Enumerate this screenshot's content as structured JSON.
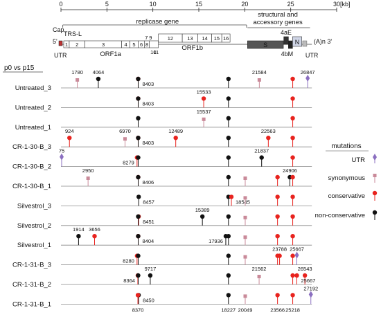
{
  "colors": {
    "UTR": "#8b6fc0",
    "synonymous": "#c98a99",
    "conservative": "#e8231e",
    "non-conservative": "#111111",
    "gene_box": "#ffffff",
    "S_box": "#555555",
    "line": "#888888"
  },
  "scale": {
    "ticks": [
      "0",
      "5",
      "10",
      "15",
      "20",
      "25",
      "30"
    ],
    "unit": "[kb]",
    "max_kb": 30
  },
  "genome": {
    "replicase_label": "replicase gene",
    "structural_label_1": "structural and",
    "structural_label_2": "accessory genes",
    "cap": "Cap",
    "trs": "TRS-L",
    "five_prime": "5'",
    "utr_left": "UTR",
    "utr_right": "UTR",
    "polyA": "(A)n 3'",
    "orf1a": "ORF1a",
    "orf1b": "ORF1b",
    "S": "S",
    "N": "N",
    "label_4aE": "4aE",
    "label_4bM": "4bM",
    "nsp_1a": [
      {
        "label": "1",
        "start": 0.3,
        "end": 0.9
      },
      {
        "label": "2",
        "start": 0.9,
        "end": 2.6
      },
      {
        "label": "3",
        "start": 2.6,
        "end": 6.6
      },
      {
        "label": "4",
        "start": 6.6,
        "end": 7.5
      },
      {
        "label": "5",
        "start": 7.5,
        "end": 8.4
      },
      {
        "label": "6",
        "start": 8.4,
        "end": 9.1
      },
      {
        "label": "8",
        "start": 9.1,
        "end": 9.6
      }
    ],
    "nsp_top": [
      {
        "label": "7",
        "kb": 9.3
      },
      {
        "label": "9",
        "kb": 9.75
      }
    ],
    "nsp_1b": [
      {
        "label": "12",
        "start": 10.6,
        "end": 13.2
      },
      {
        "label": "13",
        "start": 13.2,
        "end": 14.9
      },
      {
        "label": "14",
        "start": 14.9,
        "end": 16.4
      },
      {
        "label": "15",
        "start": 16.4,
        "end": 17.5
      },
      {
        "label": "16",
        "start": 17.5,
        "end": 18.4
      }
    ],
    "nsp_bottom": [
      {
        "label": "10",
        "kb": 10.05
      },
      {
        "label": "11",
        "kb": 10.35
      }
    ]
  },
  "comparison_label": "p0 vs p15",
  "legend": {
    "title": "mutations",
    "items": [
      "UTR",
      "synonymous",
      "conservative",
      "non-conservative"
    ]
  },
  "samples": [
    {
      "name": "Untreated_3",
      "mutations": [
        {
          "pos": 1780,
          "type": "synonymous",
          "label": "1780",
          "lp": "above"
        },
        {
          "pos": 4064,
          "type": "non-conservative",
          "label": "4064",
          "lp": "above"
        },
        {
          "pos": 8403,
          "type": "conservative",
          "label": "8403",
          "lp": "right"
        },
        {
          "pos": 8403,
          "type": "non-conservative",
          "label": ""
        },
        {
          "pos": 18227,
          "type": "non-conservative",
          "label": ""
        },
        {
          "pos": 21584,
          "type": "synonymous",
          "label": "21584",
          "lp": "above"
        },
        {
          "pos": 25218,
          "type": "conservative",
          "label": ""
        },
        {
          "pos": 26847,
          "type": "UTR",
          "label": "26847",
          "lp": "above"
        }
      ]
    },
    {
      "name": "Untreated_2",
      "mutations": [
        {
          "pos": 8403,
          "type": "conservative",
          "label": "8403",
          "lp": "right"
        },
        {
          "pos": 8403,
          "type": "non-conservative",
          "label": ""
        },
        {
          "pos": 15533,
          "type": "conservative",
          "label": "15533",
          "lp": "above"
        },
        {
          "pos": 18227,
          "type": "non-conservative",
          "label": ""
        },
        {
          "pos": 25218,
          "type": "conservative",
          "label": ""
        }
      ]
    },
    {
      "name": "Untreated_1",
      "mutations": [
        {
          "pos": 8403,
          "type": "non-conservative",
          "label": ""
        },
        {
          "pos": 15537,
          "type": "synonymous",
          "label": "15537",
          "lp": "above"
        },
        {
          "pos": 18227,
          "type": "non-conservative",
          "label": ""
        },
        {
          "pos": 25218,
          "type": "conservative",
          "label": ""
        }
      ]
    },
    {
      "name": "CR-1-30-B_3",
      "mutations": [
        {
          "pos": 924,
          "type": "conservative",
          "label": "924",
          "lp": "above"
        },
        {
          "pos": 6970,
          "type": "synonymous",
          "label": "6970",
          "lp": "above"
        },
        {
          "pos": 8403,
          "type": "conservative",
          "label": "8403",
          "lp": "right"
        },
        {
          "pos": 8403,
          "type": "non-conservative",
          "label": ""
        },
        {
          "pos": 12489,
          "type": "conservative",
          "label": "12489",
          "lp": "above"
        },
        {
          "pos": 18227,
          "type": "non-conservative",
          "label": ""
        },
        {
          "pos": 22563,
          "type": "conservative",
          "label": "22563",
          "lp": "above"
        },
        {
          "pos": 25218,
          "type": "conservative",
          "label": ""
        }
      ]
    },
    {
      "name": "CR-1-30-B_2",
      "mutations": [
        {
          "pos": 75,
          "type": "UTR",
          "label": "75",
          "lp": "above"
        },
        {
          "pos": 8279,
          "type": "conservative",
          "label": "8279",
          "lp": "left"
        },
        {
          "pos": 8403,
          "type": "non-conservative",
          "label": ""
        },
        {
          "pos": 18227,
          "type": "non-conservative",
          "label": ""
        },
        {
          "pos": 21837,
          "type": "non-conservative",
          "label": "21837",
          "lp": "above"
        },
        {
          "pos": 25218,
          "type": "conservative",
          "label": ""
        }
      ]
    },
    {
      "name": "CR-1-30-B_1",
      "mutations": [
        {
          "pos": 2950,
          "type": "synonymous",
          "label": "2950",
          "lp": "above"
        },
        {
          "pos": 8406,
          "type": "conservative",
          "label": "8406",
          "lp": "right"
        },
        {
          "pos": 8403,
          "type": "non-conservative",
          "label": ""
        },
        {
          "pos": 18227,
          "type": "non-conservative",
          "label": ""
        },
        {
          "pos": 20049,
          "type": "synonymous",
          "label": ""
        },
        {
          "pos": 23566,
          "type": "conservative",
          "label": ""
        },
        {
          "pos": 24906,
          "type": "non-conservative",
          "label": "24906",
          "lp": "above"
        },
        {
          "pos": 25218,
          "type": "conservative",
          "label": ""
        }
      ]
    },
    {
      "name": "Silvestrol_3",
      "mutations": [
        {
          "pos": 8457,
          "type": "non-conservative",
          "label": "8457",
          "lp": "right"
        },
        {
          "pos": 18227,
          "type": "non-conservative",
          "label": ""
        },
        {
          "pos": 18545,
          "type": "conservative",
          "label": "18545",
          "lp": "right"
        },
        {
          "pos": 20049,
          "type": "synonymous",
          "label": ""
        },
        {
          "pos": 23566,
          "type": "conservative",
          "label": ""
        },
        {
          "pos": 25218,
          "type": "conservative",
          "label": ""
        }
      ]
    },
    {
      "name": "Silvestrol_2",
      "mutations": [
        {
          "pos": 8451,
          "type": "conservative",
          "label": "8451",
          "lp": "right"
        },
        {
          "pos": 8403,
          "type": "non-conservative",
          "label": ""
        },
        {
          "pos": 15389,
          "type": "non-conservative",
          "label": "15389",
          "lp": "above"
        },
        {
          "pos": 18227,
          "type": "non-conservative",
          "label": ""
        },
        {
          "pos": 20049,
          "type": "synonymous",
          "label": ""
        },
        {
          "pos": 23566,
          "type": "conservative",
          "label": ""
        },
        {
          "pos": 25218,
          "type": "conservative",
          "label": ""
        }
      ]
    },
    {
      "name": "Silvestrol_1",
      "mutations": [
        {
          "pos": 1914,
          "type": "non-conservative",
          "label": "1914",
          "lp": "above"
        },
        {
          "pos": 3656,
          "type": "conservative",
          "label": "3656",
          "lp": "above"
        },
        {
          "pos": 8404,
          "type": "conservative",
          "label": "8404",
          "lp": "right"
        },
        {
          "pos": 8403,
          "type": "non-conservative",
          "label": ""
        },
        {
          "pos": 17936,
          "type": "non-conservative",
          "label": "17936",
          "lp": "left"
        },
        {
          "pos": 18227,
          "type": "non-conservative",
          "label": ""
        },
        {
          "pos": 20049,
          "type": "synonymous",
          "label": ""
        },
        {
          "pos": 23566,
          "type": "conservative",
          "label": ""
        },
        {
          "pos": 25218,
          "type": "conservative",
          "label": ""
        }
      ]
    },
    {
      "name": "CR-1-31-B_3",
      "mutations": [
        {
          "pos": 8280,
          "type": "conservative",
          "label": "8280",
          "lp": "left"
        },
        {
          "pos": 8403,
          "type": "non-conservative",
          "label": ""
        },
        {
          "pos": 18227,
          "type": "non-conservative",
          "label": ""
        },
        {
          "pos": 20049,
          "type": "synonymous",
          "label": ""
        },
        {
          "pos": 23566,
          "type": "conservative",
          "label": ""
        },
        {
          "pos": 23788,
          "type": "conservative",
          "label": "23788",
          "lp": "above"
        },
        {
          "pos": 25218,
          "type": "conservative",
          "label": ""
        },
        {
          "pos": 25667,
          "type": "UTR",
          "label": "25667",
          "lp": "above"
        }
      ]
    },
    {
      "name": "CR-1-31-B_2",
      "mutations": [
        {
          "pos": 8364,
          "type": "conservative",
          "label": "8364",
          "lp": "left"
        },
        {
          "pos": 8403,
          "type": "non-conservative",
          "label": ""
        },
        {
          "pos": 9717,
          "type": "non-conservative",
          "label": "9717",
          "lp": "above"
        },
        {
          "pos": 18227,
          "type": "non-conservative",
          "label": ""
        },
        {
          "pos": 21562,
          "type": "synonymous",
          "label": "21562",
          "lp": "above"
        },
        {
          "pos": 25218,
          "type": "conservative",
          "label": ""
        },
        {
          "pos": 26543,
          "type": "conservative",
          "label": "26543",
          "lp": "above"
        },
        {
          "pos": 25667,
          "type": "conservative",
          "label": "25667",
          "lp": "right"
        }
      ]
    },
    {
      "name": "CR-1-31-B_1",
      "mutations": [
        {
          "pos": 8450,
          "type": "non-conservative",
          "label": "8450",
          "lp": "right"
        },
        {
          "pos": 8370,
          "type": "conservative",
          "label": "8370",
          "lp": "below"
        },
        {
          "pos": 18227,
          "type": "non-conservative",
          "label": "18227",
          "lp": "below"
        },
        {
          "pos": 20049,
          "type": "synonymous",
          "label": "20049",
          "lp": "below"
        },
        {
          "pos": 23566,
          "type": "conservative",
          "label": "23566",
          "lp": "below"
        },
        {
          "pos": 25218,
          "type": "conservative",
          "label": "25218",
          "lp": "below"
        },
        {
          "pos": 27192,
          "type": "UTR",
          "label": "27192",
          "lp": "above"
        }
      ]
    }
  ]
}
